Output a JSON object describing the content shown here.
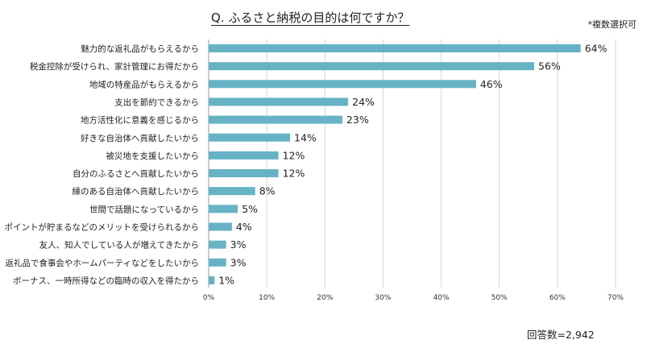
{
  "title": "Q. ふるさと納税の目的は何ですか？",
  "note": "*複数選択可",
  "footer": "回答数=2,942",
  "chart_data": {
    "type": "bar",
    "orientation": "horizontal",
    "title": "Q. ふるさと納税の目的は何ですか？",
    "xlabel": "",
    "ylabel": "",
    "xlim": [
      0,
      70
    ],
    "grid": true,
    "color": "#66b3c6",
    "categories": [
      "魅力的な返礼品がもらえるから",
      "税金控除が受けられ、家計管理にお得だから",
      "地域の特産品がもらえるから",
      "支出を節約できるから",
      "地方活性化に意義を感じるから",
      "好きな自治体へ貢献したいから",
      "被災地を支援したいから",
      "自分のふるさとへ貢献したいから",
      "縁のある自治体へ貢献したいから",
      "世間で話題になっているから",
      "ポイントが貯まるなどのメリットを受けられるから",
      "友人、知人でしている人が増えてきたから",
      "返礼品で食事会やホームパーティなどをしたいから",
      "ボーナス、一時所得などの臨時の収入を得たから"
    ],
    "values": [
      64,
      56,
      46,
      24,
      23,
      14,
      12,
      12,
      8,
      5,
      4,
      3,
      3,
      1
    ],
    "value_labels": [
      "64%",
      "56%",
      "46%",
      "24%",
      "23%",
      "14%",
      "12%",
      "12%",
      "8%",
      "5%",
      "4%",
      "3%",
      "3%",
      "1%"
    ],
    "ticks": [
      0,
      10,
      20,
      30,
      40,
      50,
      60,
      70
    ],
    "tick_labels": [
      "0%",
      "10%",
      "20%",
      "30%",
      "40%",
      "50%",
      "60%",
      "70%"
    ]
  }
}
